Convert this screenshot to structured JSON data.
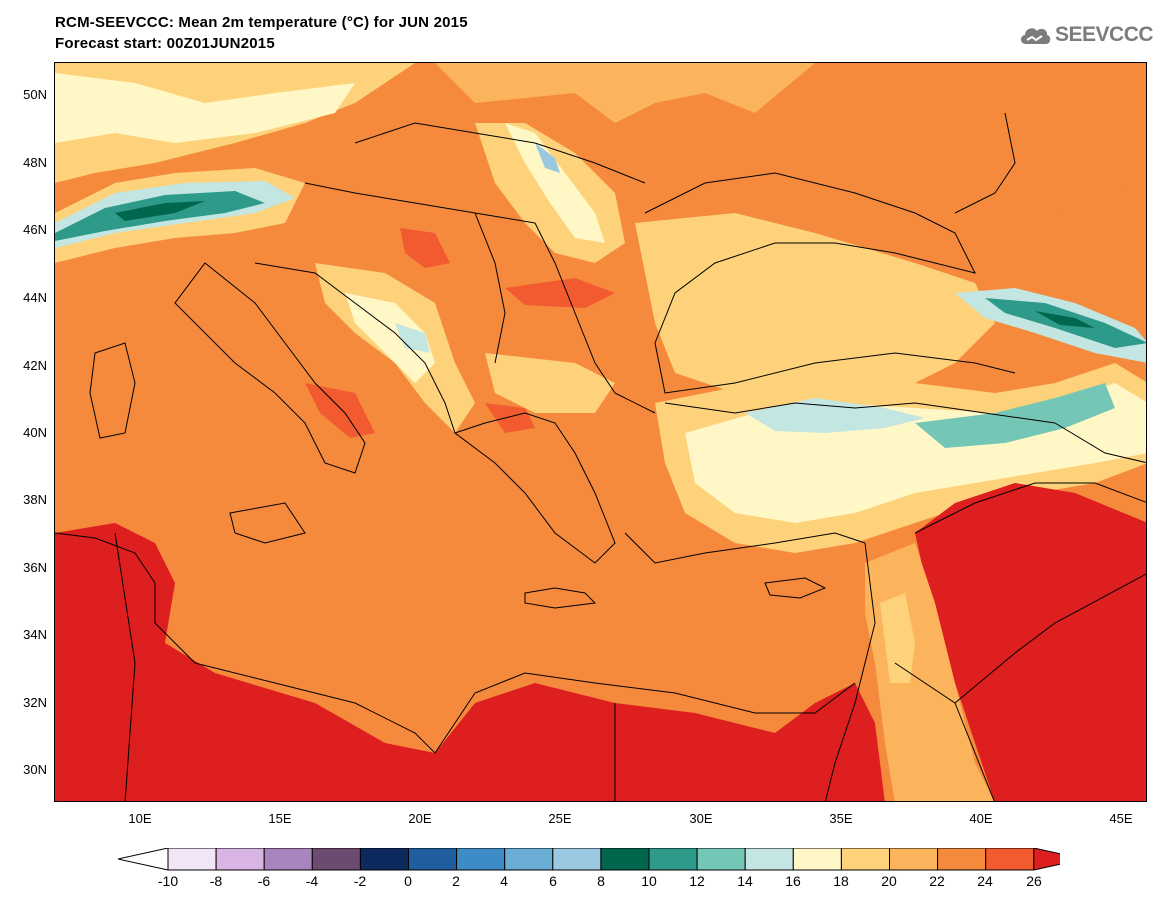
{
  "title_line1": "RCM-SEEVCCC: Mean 2m temperature (°C) for JUN 2015",
  "title_line2": "Forecast start: 00Z01JUN2015",
  "logo_text": "SEEVCCC",
  "map": {
    "lon_range": [
      7,
      46
    ],
    "lat_range": [
      29,
      51
    ],
    "lat_ticks": [
      "50N",
      "48N",
      "46N",
      "44N",
      "42N",
      "40N",
      "38N",
      "36N",
      "34N",
      "32N",
      "30N"
    ],
    "lon_ticks": [
      "10E",
      "15E",
      "20E",
      "25E",
      "30E",
      "35E",
      "40E",
      "45E"
    ]
  },
  "legend": {
    "tick_labels": [
      "-10",
      "-8",
      "-6",
      "-4",
      "-2",
      "0",
      "2",
      "4",
      "6",
      "8",
      "10",
      "12",
      "14",
      "16",
      "18",
      "20",
      "22",
      "24",
      "26"
    ],
    "colors": [
      "#ffffff",
      "#f0e6f5",
      "#d9b5e3",
      "#a885be",
      "#6b4c70",
      "#0d2a5e",
      "#1f5fa0",
      "#3e8cc6",
      "#6aaed6",
      "#9ac8e0",
      "#00664e",
      "#2e9a8a",
      "#74c6b7",
      "#c3e6e2",
      "#fff8c6",
      "#fdd27a",
      "#fbb45c",
      "#f58a3c",
      "#f25a30",
      "#dd1f1f"
    ],
    "under_color": "#ffffff",
    "over_color": "#dd1f1f"
  }
}
